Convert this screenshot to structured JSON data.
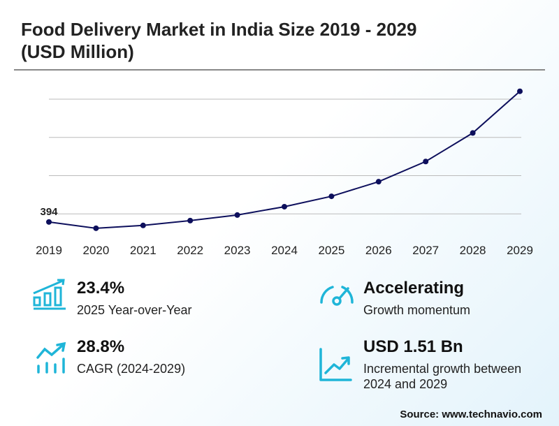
{
  "title": "Food Delivery Market in India Size 2019 - 2029 (USD Million)",
  "chart_data": {
    "type": "line",
    "title": "Food Delivery Market in India Size 2019 - 2029 (USD Million)",
    "categories": [
      "2019",
      "2020",
      "2021",
      "2022",
      "2023",
      "2024",
      "2025",
      "2026",
      "2027",
      "2028",
      "2029"
    ],
    "values": [
      394,
      312,
      349,
      412,
      485,
      594,
      730,
      921,
      1185,
      1558,
      2103
    ],
    "data_labels": [
      {
        "index": 0,
        "text": "394"
      }
    ],
    "ylim": [
      0,
      2000
    ],
    "gridlines": [
      500,
      1000,
      1500,
      2000
    ],
    "grid": true,
    "line_color": "#0d0f5c",
    "grid_color": "#bbbbbb"
  },
  "stats": [
    {
      "value": "23.4%",
      "label": "2025 Year-over-Year",
      "icon": "bar-chart-growth-icon"
    },
    {
      "value": "Accelerating",
      "label": "Growth momentum",
      "icon": "speedometer-icon"
    },
    {
      "value": "28.8%",
      "label": "CAGR (2024-2029)",
      "icon": "trend-up-bars-icon"
    },
    {
      "value": "USD 1.51 Bn",
      "label": "Incremental growth between 2024 and 2029",
      "icon": "line-chart-up-icon"
    }
  ],
  "accent_color": "#1fb5d8",
  "source": "Source: www.technavio.com"
}
